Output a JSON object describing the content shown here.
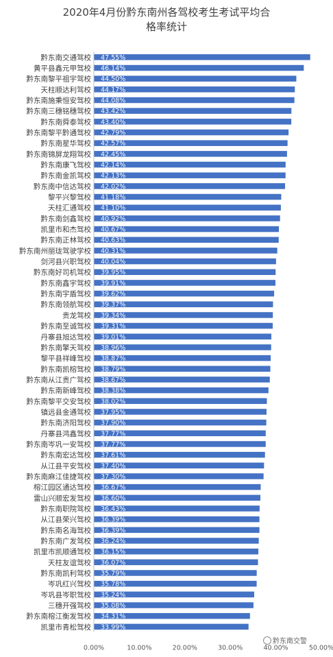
{
  "chart_data": {
    "type": "bar",
    "orientation": "horizontal",
    "title_lines": [
      "2020年4月份黔东南州各驾校考生考试平均合",
      "格率统计"
    ],
    "categories": [
      "黔东南交通驾校",
      "黄平县鑫元甲驾校",
      "黔东南黎平祖宇驾校",
      "天柱顺达利驾校",
      "黔东南施秉恒安驾校",
      "黔东南三穗铭穗驾校",
      "黔东南舜泰驾校",
      "黔东南黎平黔通驾校",
      "黔东南星华驾校",
      "黔东南锦屏龙翔驾校",
      "黔东南康飞驾校",
      "黔东南金凯驾校",
      "黔东南中信达驾校",
      "黎平兴黎驾校",
      "天柱汇通驾校",
      "黔东南剑鑫驾校",
      "凯里市和杰驾校",
      "黔东南正林驾校",
      "黔东南州丽珑驾驶学校",
      "剑河县兴职驾校",
      "黔东南好司机驾校",
      "黔东南鑫宇驾校",
      "黔东南宇盾驾校",
      "黔东南领航驾校",
      "贵龙驾校",
      "黔东南至诚驾校",
      "丹寨县旭达驾校",
      "黔东南擎天驾校",
      "黎平县祥峰驾校",
      "黔东南凯榕驾校",
      "黔东南从江贵广驾校",
      "黔东南新峰驾校",
      "黔东南黎平交安驾校",
      "镇远县金通驾校",
      "黔东南济阳驾校",
      "丹寨县鸿鑫驾校",
      "黔东南岑巩一安驾校",
      "黔东南宏达驾校",
      "从江县平安驾校",
      "黔东南麻江佳捷驾校",
      "榕江园区通达驾校",
      "雷山兴顺宏发驾校",
      "黔东南职院驾校",
      "从江县荣兴驾校",
      "黔东南名海驾校",
      "黔东南广发驾校",
      "凯里市凯顺通驾校",
      "天柱友谊驾校",
      "黔东南凯利驾校",
      "岑巩红兴驾校",
      "岑巩县岑职驾校",
      "三穗开强驾校",
      "黔东南榕江衡发驾校",
      "凯里市青松驾校"
    ],
    "values": [
      47.55,
      46.14,
      44.5,
      44.17,
      44.08,
      43.42,
      43.4,
      42.79,
      42.57,
      42.45,
      42.14,
      42.13,
      42.02,
      41.18,
      41.1,
      40.92,
      40.67,
      40.63,
      40.31,
      40.04,
      39.95,
      39.91,
      39.62,
      39.37,
      39.34,
      39.31,
      39.01,
      38.96,
      38.87,
      38.79,
      38.67,
      38.38,
      38.02,
      37.95,
      37.9,
      37.77,
      37.77,
      37.61,
      37.4,
      37.3,
      36.67,
      36.6,
      36.43,
      36.39,
      36.39,
      36.24,
      36.15,
      36.07,
      35.79,
      35.78,
      35.24,
      35.08,
      34.31,
      33.99
    ],
    "value_format": "{v}%",
    "xlim": [
      0,
      50
    ],
    "xticks": [
      0,
      10,
      20,
      30,
      40,
      50
    ],
    "xtick_labels": [
      "0.00%",
      "10.00%",
      "20.00%",
      "30.00%",
      "40.00%",
      "50.00%"
    ],
    "xlabel": "",
    "ylabel": "",
    "grid": false,
    "legend": "none",
    "bar_color": "#4472C4",
    "label_color": "#ffffff",
    "text_color": "#404040"
  },
  "watermark": {
    "text": "黔东南交警"
  }
}
